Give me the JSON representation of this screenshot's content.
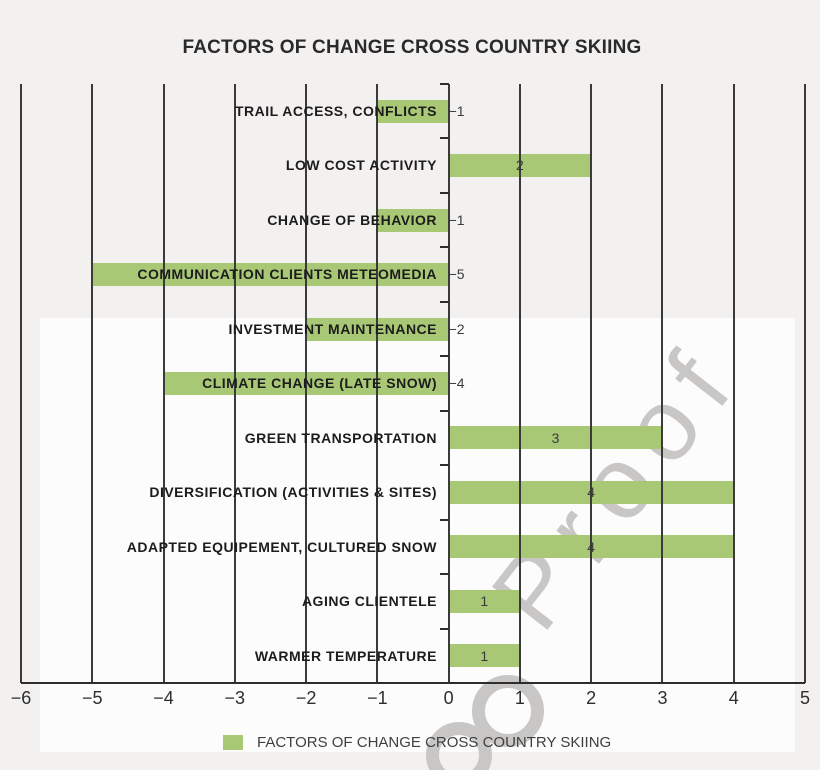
{
  "title": "FACTORS OF CHANGE CROSS COUNTRY SKIING",
  "legend": {
    "label": "FACTORS OF CHANGE CROSS COUNTRY SKIING"
  },
  "watermark": {
    "text": "ooProof"
  },
  "colors": {
    "bar": "#a8c876",
    "grid": "#3a3a3a",
    "axis": "#2d2d2d",
    "page_bg": "#f3f1f0",
    "box_bg": "#fdfcfc",
    "category_text": "#1c1c1c",
    "value_text": "#3a3a3a",
    "tick_text": "#2e2e2e",
    "title_text": "#2a2a2a",
    "legend_text": "#3f3f3f",
    "watermark": "#c9c7c6"
  },
  "chart_data": {
    "type": "bar",
    "orientation": "horizontal",
    "title": "FACTORS OF CHANGE CROSS COUNTRY SKIING",
    "categories": [
      "TRAIL ACCESS, CONFLICTS",
      "LOW COST ACTIVITY",
      "CHANGE OF BEHAVIOR",
      "COMMUNICATION CLIENTS METEOMEDIA",
      "INVESTMENT MAINTENANCE",
      "CLIMATE CHANGE (LATE SNOW)",
      "GREEN TRANSPORTATION",
      "DIVERSIFICATION (ACTIVITIES & SITES)",
      "ADAPTED EQUIPEMENT, CULTURED SNOW",
      "AGING CLIENTELE",
      "WARMER TEMPERATURE"
    ],
    "values": [
      -1,
      2,
      -1,
      -5,
      -2,
      -4,
      3,
      4,
      4,
      1,
      1
    ],
    "xlim": [
      -6,
      5
    ],
    "xticks": [
      -6,
      -5,
      -4,
      -3,
      -2,
      -1,
      0,
      1,
      2,
      3,
      4,
      5
    ],
    "grid": "vertical",
    "legend_position": "bottom",
    "legend_entries": [
      "FACTORS OF CHANGE CROSS COUNTRY SKIING"
    ],
    "value_label_placement": {
      "positive": "center-of-bar",
      "negative": "right-of-zero-axis"
    }
  }
}
